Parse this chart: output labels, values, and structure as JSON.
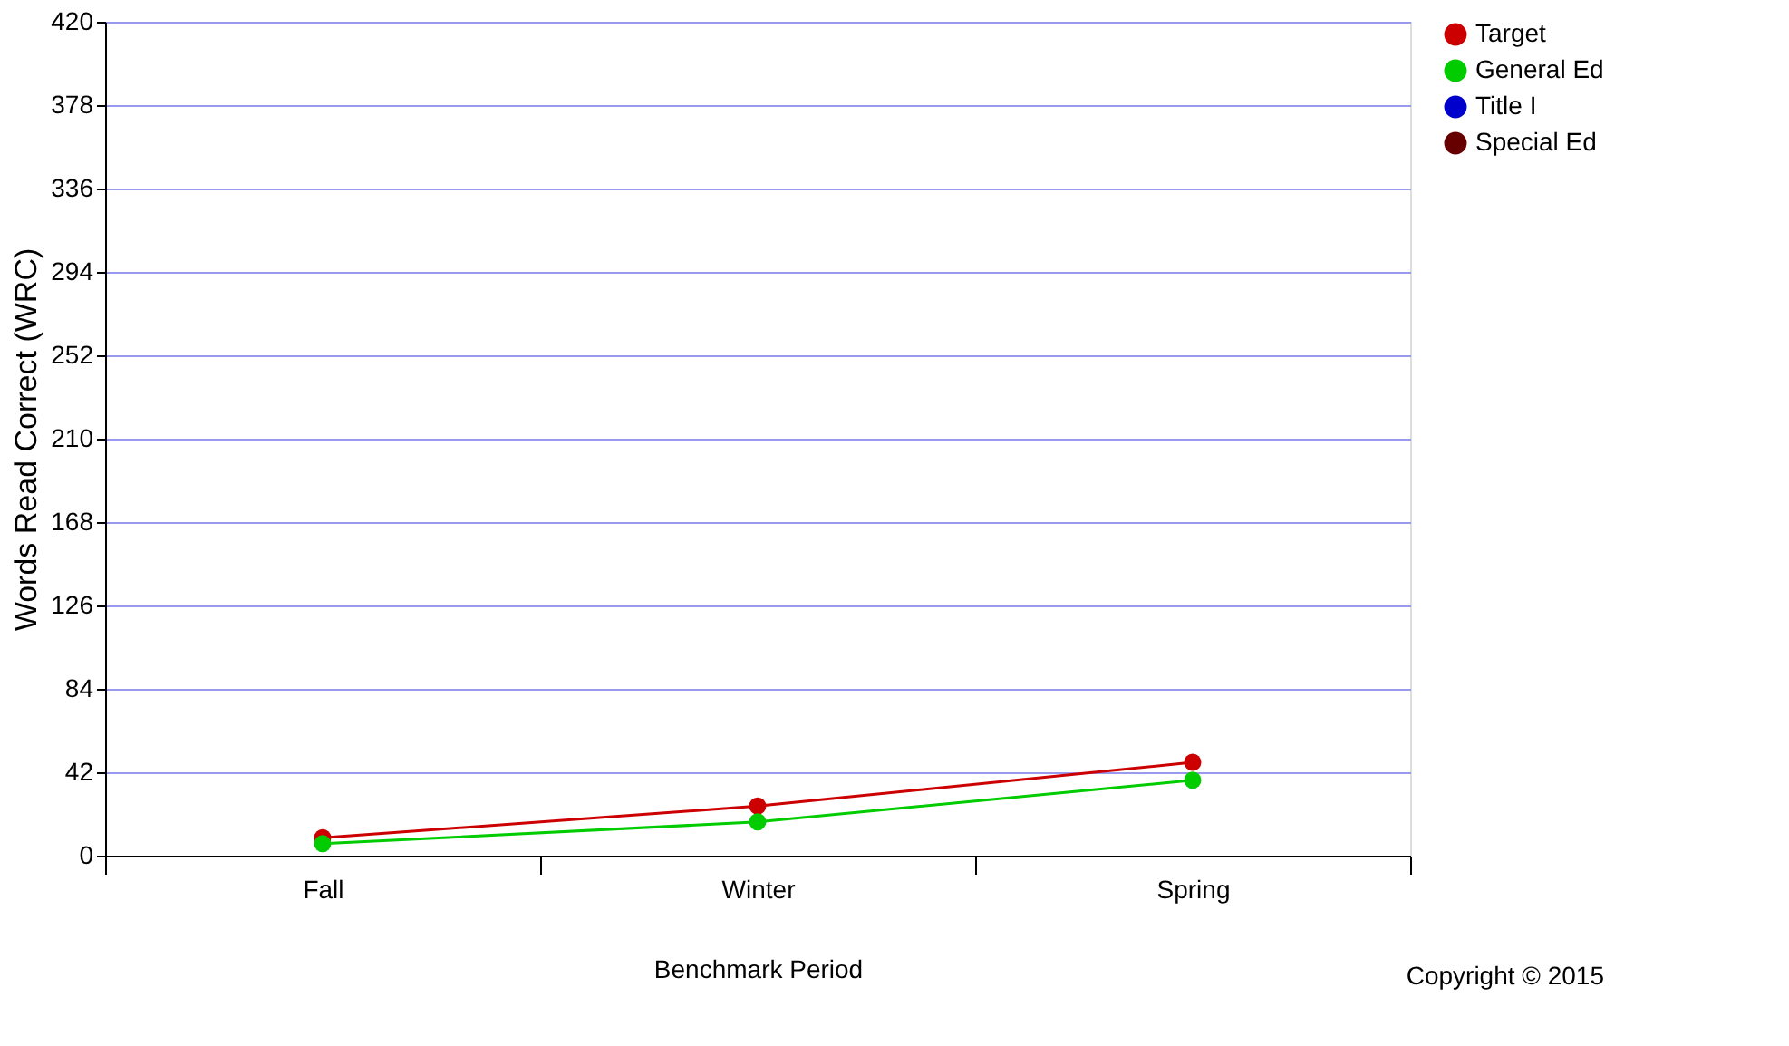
{
  "chart_data": {
    "type": "line",
    "xlabel": "Benchmark Period",
    "ylabel": "Words Read Correct (WRC)",
    "categories": [
      "Fall",
      "Winter",
      "Spring"
    ],
    "series": [
      {
        "name": "Target",
        "color": "#cc0000",
        "values": [
          9,
          25,
          47
        ]
      },
      {
        "name": "General Ed",
        "color": "#00cc00",
        "values": [
          6,
          17,
          38
        ]
      },
      {
        "name": "Title I",
        "color": "#0000cc",
        "values": [
          null,
          null,
          null
        ]
      },
      {
        "name": "Special Ed",
        "color": "#660000",
        "values": [
          null,
          null,
          null
        ]
      }
    ],
    "ylim": [
      0,
      420
    ],
    "yticks": [
      0,
      42,
      84,
      126,
      168,
      210,
      252,
      294,
      336,
      378,
      420
    ],
    "grid": "y",
    "legend": "top right",
    "marker": "circle",
    "line_style": "solid",
    "annotations": [
      "Copyright © 2015"
    ]
  }
}
